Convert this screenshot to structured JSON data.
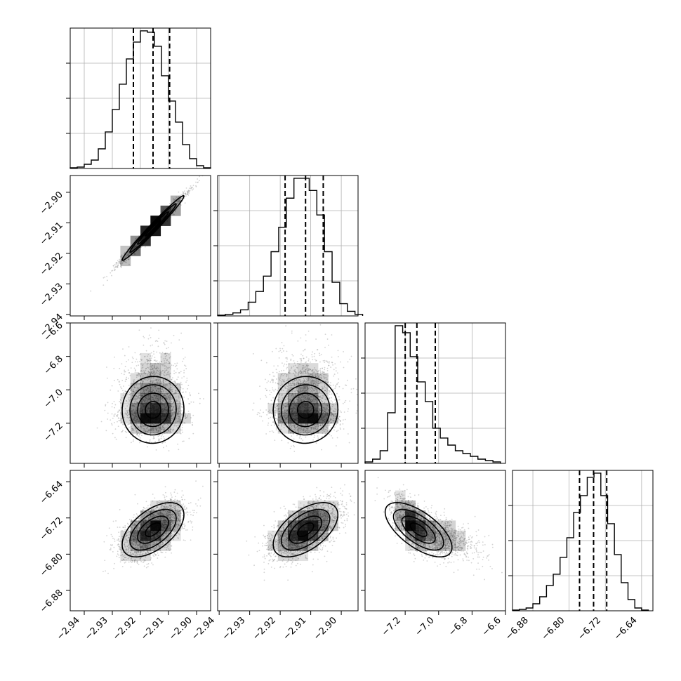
{
  "chart_data": {
    "type": "corner",
    "grid": true,
    "colors": {
      "line": "#000000",
      "grid": "#b0b0b0",
      "points": "#808080",
      "density": "#000000"
    },
    "parameters": [
      {
        "index": 0,
        "xlim": [
          -2.945,
          -2.895
        ],
        "quantiles": [
          -2.9225,
          -2.9155,
          -2.9096
        ],
        "mean": -2.9155,
        "sd": 0.0055,
        "x_ticks": [
          -2.94,
          -2.93,
          -2.92,
          -2.91,
          -2.9
        ],
        "x_tick_labels": [
          "−2.94",
          "−2.93",
          "−2.92",
          "−2.91",
          "−2.90"
        ]
      },
      {
        "index": 1,
        "xlim": [
          -2.9405,
          -2.8945
        ],
        "quantiles": [
          -2.9184,
          -2.9117,
          -2.9059
        ],
        "mean": -2.9117,
        "sd": 0.0053,
        "x_ticks": [
          -2.94,
          -2.93,
          -2.92,
          -2.91,
          -2.9
        ],
        "x_tick_labels": [
          "−2.94",
          "−2.93",
          "−2.92",
          "−2.91",
          "−2.90"
        ],
        "y_ticks": [
          -2.94,
          -2.93,
          -2.92,
          -2.91,
          -2.9
        ],
        "y_tick_labels": [
          "−2.94",
          "−2.93",
          "−2.92",
          "−2.91",
          "−2.90"
        ]
      },
      {
        "index": 2,
        "xlim": [
          -7.44,
          -6.6
        ],
        "quantiles": [
          -7.2,
          -7.13,
          -7.02
        ],
        "mean": -7.12,
        "sd": 0.1,
        "x_ticks": [
          -7.2,
          -7.0,
          -6.8,
          -6.6
        ],
        "x_tick_labels": [
          "−7.2",
          "−7.0",
          "−6.8",
          "−6.6"
        ],
        "y_ticks": [
          -7.2,
          -7.0,
          -6.8,
          -6.6
        ],
        "y_tick_labels": [
          "−7.2",
          "−7.0",
          "−6.8",
          "−6.6"
        ]
      },
      {
        "index": 3,
        "xlim": [
          -6.925,
          -6.615
        ],
        "quantiles": [
          -6.777,
          -6.746,
          -6.717
        ],
        "mean": -6.746,
        "sd": 0.03,
        "x_ticks": [
          -6.88,
          -6.8,
          -6.72,
          -6.64
        ],
        "x_tick_labels": [
          "−6.88",
          "−6.80",
          "−6.72",
          "−6.64"
        ],
        "y_ticks": [
          -6.88,
          -6.8,
          -6.72,
          -6.64
        ],
        "y_tick_labels": [
          "−6.88",
          "−6.80",
          "−6.72",
          "−6.64"
        ]
      }
    ],
    "histograms": [
      {
        "param": 0,
        "bin_edges": [
          -2.945,
          -2.9425,
          -2.94,
          -2.9375,
          -2.935,
          -2.9325,
          -2.93,
          -2.9275,
          -2.925,
          -2.9225,
          -2.92,
          -2.9175,
          -2.915,
          -2.9125,
          -2.91,
          -2.9075,
          -2.905,
          -2.9025,
          -2.9,
          -2.8975,
          -2.895
        ],
        "counts": [
          0.5,
          1,
          3,
          6,
          14,
          26,
          42,
          60,
          78,
          90,
          98,
          97,
          87,
          66,
          48,
          33,
          17,
          7,
          2,
          0.5
        ]
      },
      {
        "param": 1,
        "bin_edges": [
          -2.9405,
          -2.938,
          -2.9355,
          -2.933,
          -2.9305,
          -2.928,
          -2.9255,
          -2.923,
          -2.9205,
          -2.918,
          -2.9155,
          -2.913,
          -2.9105,
          -2.908,
          -2.9055,
          -2.903,
          -2.9005,
          -2.898,
          -2.8955,
          -2.893
        ],
        "counts": [
          0.5,
          1,
          2,
          4,
          9,
          16,
          26,
          42,
          58,
          77,
          90,
          90,
          82,
          66,
          42,
          22,
          8,
          3,
          1
        ]
      },
      {
        "param": 2,
        "bin_edges": [
          -7.44,
          -7.395,
          -7.35,
          -7.305,
          -7.26,
          -7.215,
          -7.17,
          -7.125,
          -7.08,
          -7.035,
          -6.99,
          -6.945,
          -6.9,
          -6.855,
          -6.81,
          -6.765,
          -6.72,
          -6.675,
          -6.63
        ],
        "counts": [
          1,
          3,
          9,
          36,
          98,
          93,
          76,
          58,
          44,
          25,
          18,
          13,
          9,
          7,
          5,
          3,
          2,
          1
        ]
      },
      {
        "param": 3,
        "bin_edges": [
          -6.925,
          -6.91,
          -6.895,
          -6.88,
          -6.865,
          -6.85,
          -6.835,
          -6.82,
          -6.805,
          -6.79,
          -6.775,
          -6.76,
          -6.745,
          -6.73,
          -6.715,
          -6.7,
          -6.685,
          -6.67,
          -6.655,
          -6.64,
          -6.625
        ],
        "counts": [
          0.5,
          1,
          2,
          5,
          10,
          18,
          26,
          38,
          52,
          70,
          82,
          95,
          98,
          82,
          62,
          40,
          20,
          8,
          2,
          0.5
        ]
      }
    ],
    "pairs": [
      {
        "x_param": 0,
        "y_param": 1,
        "rho": 0.985
      },
      {
        "x_param": 0,
        "y_param": 2,
        "rho": 0.02
      },
      {
        "x_param": 1,
        "y_param": 2,
        "rho": 0.02
      },
      {
        "x_param": 0,
        "y_param": 3,
        "rho": 0.55
      },
      {
        "x_param": 1,
        "y_param": 3,
        "rho": 0.55
      },
      {
        "x_param": 2,
        "y_param": 3,
        "rho": -0.65
      }
    ]
  }
}
